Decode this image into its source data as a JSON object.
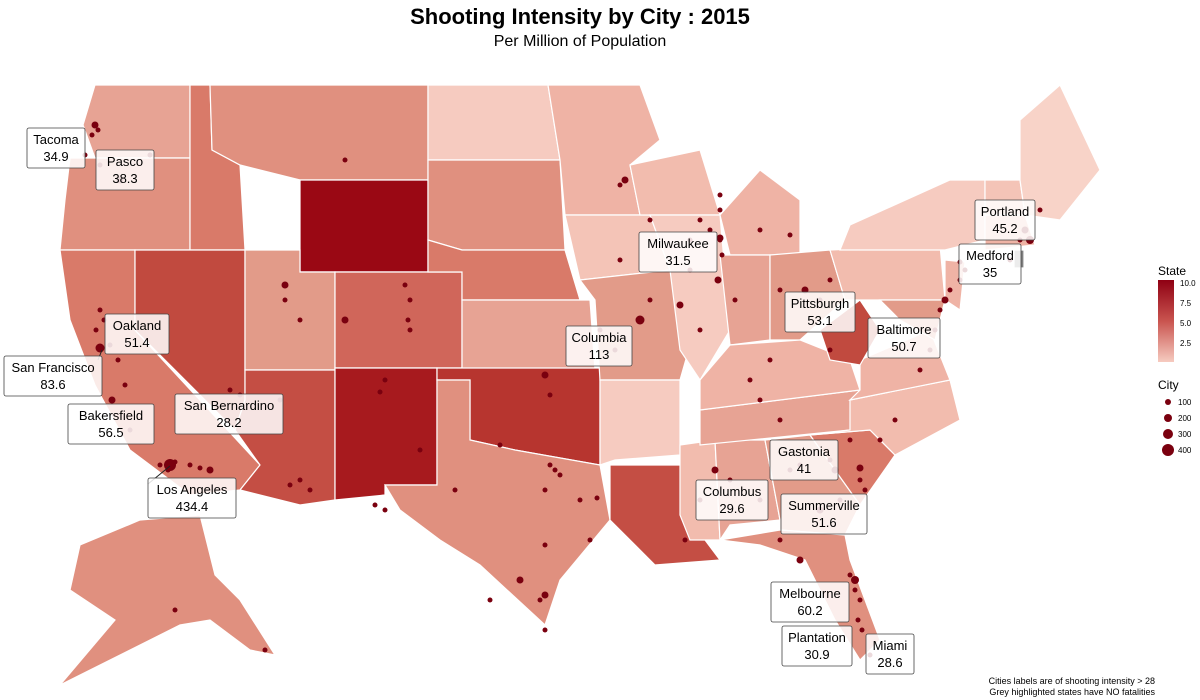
{
  "title": "Shooting Intensity by City : 2015",
  "subtitle": "Per Million of Population",
  "legend": {
    "state_title": "State",
    "state_ticks": [
      "10.0",
      "7.5",
      "5.0",
      "2.5"
    ],
    "city_title": "City",
    "city_sizes": [
      "100",
      "200",
      "300",
      "400"
    ]
  },
  "footnote": {
    "line1": "Cities labels are of shooting intensity > 28",
    "line2": "Grey highlighted states have NO fatalities"
  },
  "city_labels": [
    {
      "name": "Tacoma",
      "value": "34.9"
    },
    {
      "name": "Pasco",
      "value": "38.3"
    },
    {
      "name": "Oakland",
      "value": "51.4"
    },
    {
      "name": "San Francisco",
      "value": "83.6"
    },
    {
      "name": "Bakersfield",
      "value": "56.5"
    },
    {
      "name": "San Bernardino",
      "value": "28.2"
    },
    {
      "name": "Los Angeles",
      "value": "434.4"
    },
    {
      "name": "Columbia",
      "value": "113"
    },
    {
      "name": "Milwaukee",
      "value": "31.5"
    },
    {
      "name": "Pittsburgh",
      "value": "53.1"
    },
    {
      "name": "Baltimore",
      "value": "50.7"
    },
    {
      "name": "Portland",
      "value": "45.2"
    },
    {
      "name": "Medford",
      "value": "35"
    },
    {
      "name": "Gastonia",
      "value": "41"
    },
    {
      "name": "Summerville",
      "value": "51.6"
    },
    {
      "name": "Columbus",
      "value": "29.6"
    },
    {
      "name": "Melbourne",
      "value": "60.2"
    },
    {
      "name": "Plantation",
      "value": "30.9"
    },
    {
      "name": "Miami",
      "value": "28.6"
    }
  ],
  "colors": {
    "high": "#8f0013",
    "mid": "#c9544f",
    "low": "#f6cbc0",
    "city_dot": "#7a000f",
    "no_data": "#808080"
  }
}
